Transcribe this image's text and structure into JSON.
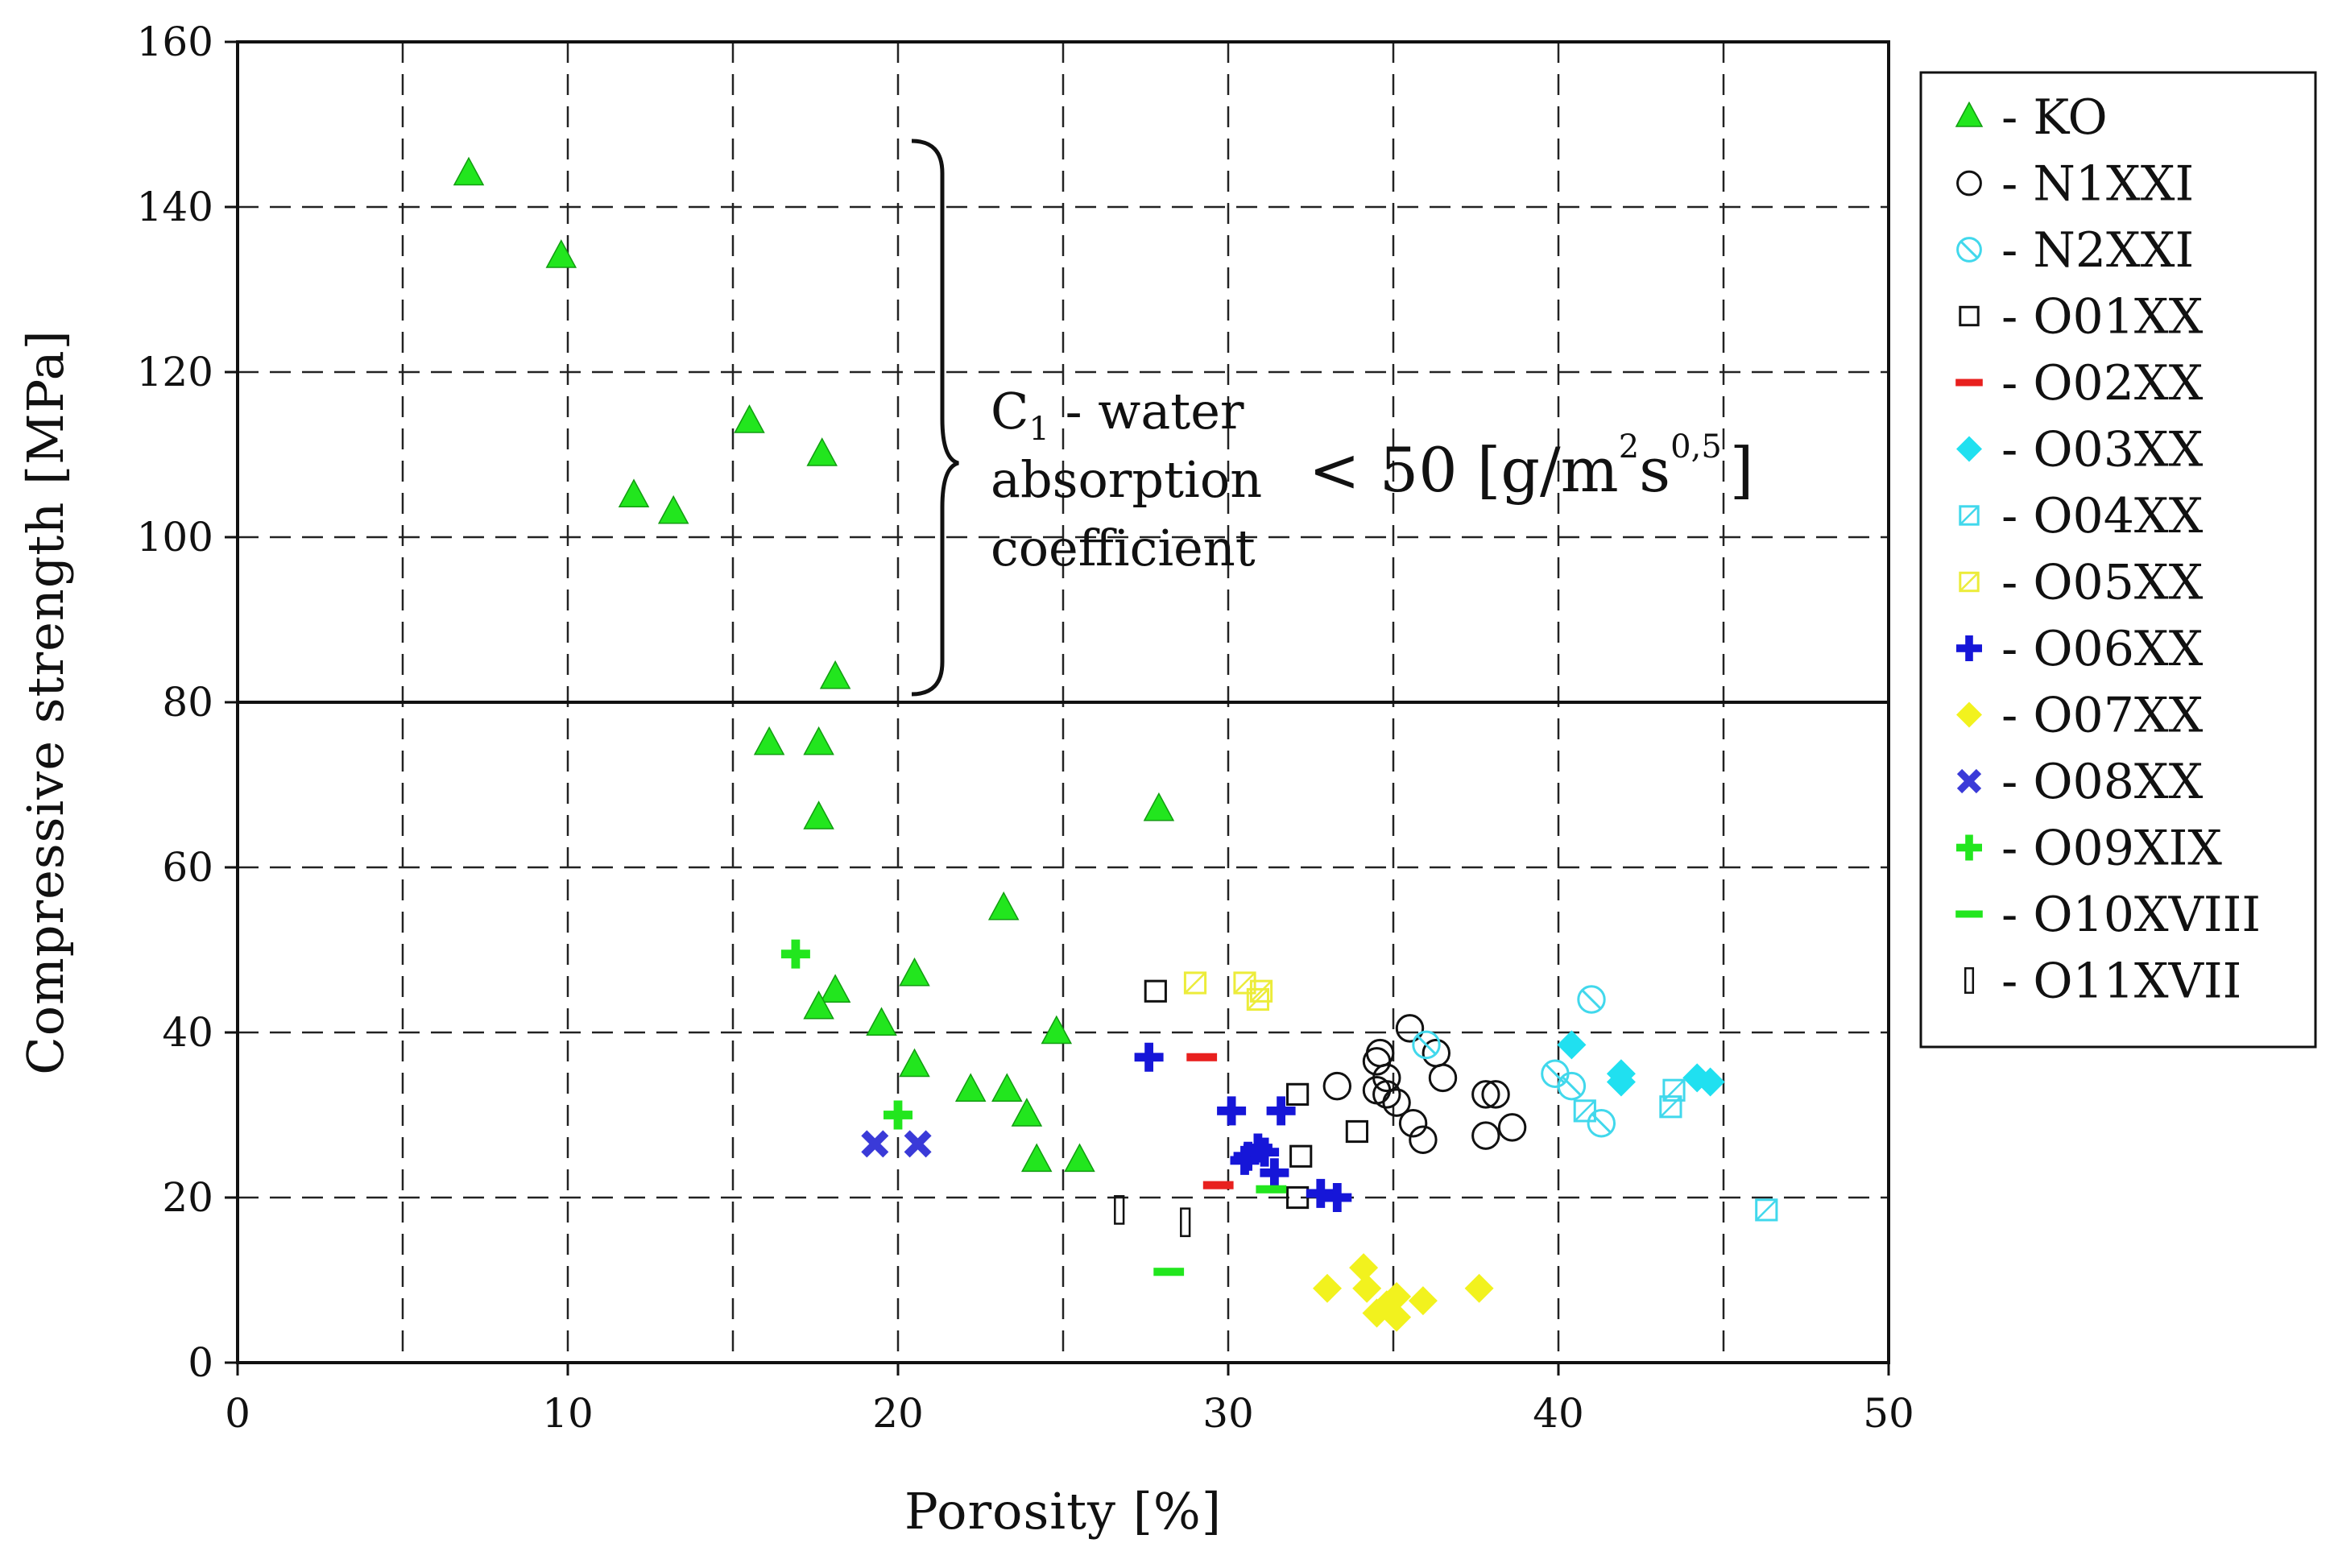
{
  "chart_data": {
    "type": "scatter",
    "xlabel": "Porosity [%]",
    "ylabel": "Compressive strength [MPa]",
    "xlim": [
      0,
      50
    ],
    "ylim": [
      0,
      160
    ],
    "xticks": [
      0,
      10,
      20,
      30,
      40,
      50
    ],
    "yticks": [
      0,
      20,
      40,
      60,
      80,
      100,
      120,
      140,
      160
    ],
    "grid": true,
    "legend_position": "right",
    "threshold_line": {
      "y": 80
    },
    "annotation": {
      "c_letter": "C",
      "c_subscript": "1",
      "line1_rest": " - water",
      "line2": "absorption",
      "line3": "coefficient",
      "inequality": "< 50 [g/m",
      "exp1": "2",
      "s_char": "s",
      "exp2": "0,5",
      "close": "]"
    },
    "series": [
      {
        "name": "KO",
        "label": "- KO",
        "marker": "triangle",
        "color": "#22e61e",
        "points": [
          [
            7,
            144
          ],
          [
            9.8,
            134
          ],
          [
            12,
            105
          ],
          [
            13.2,
            103
          ],
          [
            15.5,
            114
          ],
          [
            17.7,
            110
          ],
          [
            18.1,
            83
          ],
          [
            16.1,
            75
          ],
          [
            17.6,
            75
          ],
          [
            17.6,
            66
          ],
          [
            27.9,
            67
          ],
          [
            23.2,
            55
          ],
          [
            20.5,
            47
          ],
          [
            18.1,
            45
          ],
          [
            17.6,
            43
          ],
          [
            19.5,
            41
          ],
          [
            24.8,
            40
          ],
          [
            20.5,
            36
          ],
          [
            22.2,
            33
          ],
          [
            23.3,
            33
          ],
          [
            23.9,
            30
          ],
          [
            24.2,
            24.5
          ],
          [
            25.5,
            24.5
          ]
        ]
      },
      {
        "name": "N1XXI",
        "label": "- N1XXI",
        "marker": "circle-open",
        "color": "#111111",
        "points": [
          [
            35.5,
            40.5
          ],
          [
            34.6,
            37.5
          ],
          [
            34.5,
            36.5
          ],
          [
            36.3,
            37.5
          ],
          [
            33.3,
            33.5
          ],
          [
            34.5,
            33
          ],
          [
            34.8,
            34.5
          ],
          [
            34.8,
            32.5
          ],
          [
            35.1,
            31.5
          ],
          [
            36.5,
            34.5
          ],
          [
            35.6,
            29
          ],
          [
            35.9,
            27
          ],
          [
            37.8,
            32.5
          ],
          [
            38.1,
            32.5
          ],
          [
            37.8,
            27.5
          ],
          [
            38.6,
            28.5
          ]
        ]
      },
      {
        "name": "N2XXI",
        "label": "- N2XXI",
        "marker": "circle-crossed",
        "color": "#41d8ec",
        "points": [
          [
            41,
            44
          ],
          [
            39.9,
            35
          ],
          [
            40.4,
            33.5
          ],
          [
            41.3,
            29
          ],
          [
            36,
            38.5
          ]
        ]
      },
      {
        "name": "O01XX",
        "label": "- O01XX",
        "marker": "square-open",
        "color": "#111111",
        "points": [
          [
            27.8,
            45
          ],
          [
            32.1,
            32.5
          ],
          [
            32.2,
            25
          ],
          [
            33.9,
            28
          ],
          [
            32.1,
            20
          ]
        ]
      },
      {
        "name": "O02XX",
        "label": "- O02XX",
        "marker": "dash",
        "color": "#e8201e",
        "points": [
          [
            29.2,
            37
          ],
          [
            29.7,
            21.5
          ]
        ]
      },
      {
        "name": "O03XX",
        "label": "- O03XX",
        "marker": "diamond",
        "color": "#20e0f0",
        "points": [
          [
            40.4,
            38.5
          ],
          [
            41.9,
            35
          ],
          [
            41.9,
            34
          ],
          [
            44.2,
            34.5
          ],
          [
            44.6,
            34
          ]
        ]
      },
      {
        "name": "O04XX",
        "label": "- O04XX",
        "marker": "square-crossed",
        "color": "#41d8ec",
        "points": [
          [
            40.8,
            30.5
          ],
          [
            43.5,
            33
          ],
          [
            43.4,
            31
          ],
          [
            46.3,
            18.5
          ]
        ]
      },
      {
        "name": "O05XX",
        "label": "- O05XX",
        "marker": "square-crossed",
        "color": "#ecec3a",
        "points": [
          [
            29,
            46
          ],
          [
            30.5,
            46
          ],
          [
            31,
            45
          ],
          [
            30.9,
            44
          ]
        ]
      },
      {
        "name": "O06XX",
        "label": "- O06XX",
        "marker": "plus",
        "color": "#1616d8",
        "points": [
          [
            27.6,
            37
          ],
          [
            30.1,
            30.5
          ],
          [
            31.6,
            30.5
          ],
          [
            30.6,
            25
          ],
          [
            30.9,
            26
          ],
          [
            31.1,
            25.5
          ],
          [
            30.5,
            24.5
          ],
          [
            31.4,
            23
          ],
          [
            32.8,
            20.5
          ],
          [
            33.3,
            20
          ]
        ]
      },
      {
        "name": "O07XX",
        "label": "- O07XX",
        "marker": "diamond",
        "color": "#f2f21e",
        "points": [
          [
            34.1,
            11.5
          ],
          [
            33,
            9
          ],
          [
            34.2,
            9
          ],
          [
            37.6,
            9
          ],
          [
            35.1,
            8
          ],
          [
            34.8,
            7
          ],
          [
            35.9,
            7.5
          ],
          [
            34.5,
            6
          ],
          [
            35.1,
            5.5
          ]
        ]
      },
      {
        "name": "O08XX",
        "label": "- O08XX",
        "marker": "x",
        "color": "#3a3ad8",
        "points": [
          [
            19.3,
            26.5
          ],
          [
            20.6,
            26.5
          ]
        ]
      },
      {
        "name": "O09XIX",
        "label": "- O09XIX",
        "marker": "plus",
        "color": "#22e61e",
        "points": [
          [
            16.9,
            49.5
          ],
          [
            20,
            30
          ]
        ]
      },
      {
        "name": "O10XVIII",
        "label": "- O10XVIII",
        "marker": "dash",
        "color": "#22e61e",
        "points": [
          [
            28.2,
            11
          ],
          [
            31.3,
            21
          ]
        ]
      },
      {
        "name": "O11XVII",
        "label": "- O11XVII",
        "marker": "bar-open",
        "color": "#111111",
        "points": [
          [
            26.7,
            18.5
          ],
          [
            28.7,
            17
          ]
        ]
      }
    ]
  }
}
